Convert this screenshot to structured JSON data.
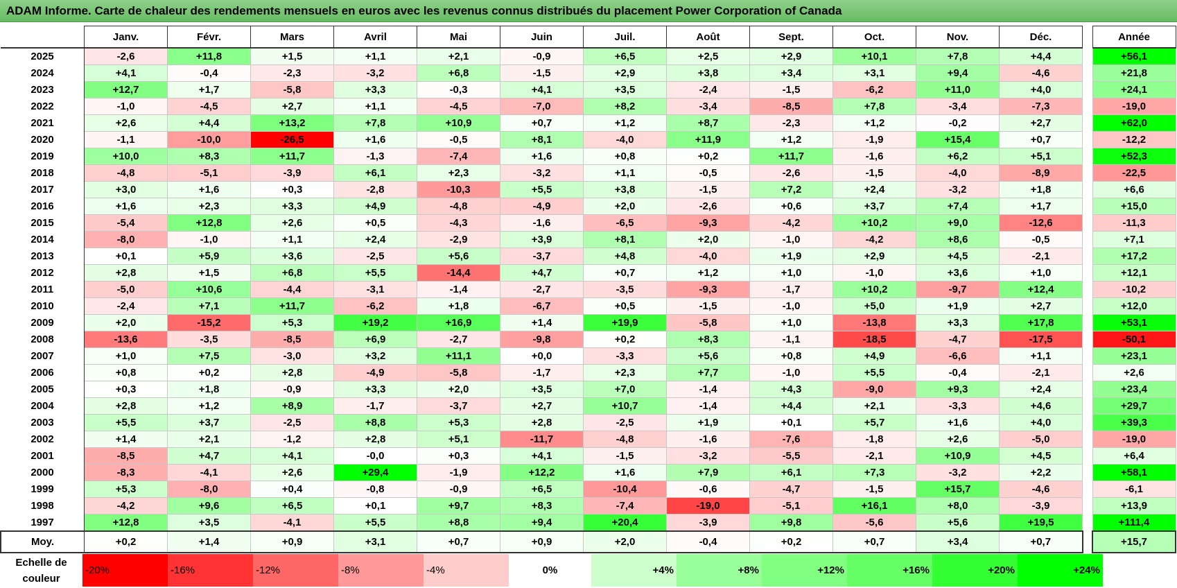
{
  "title": "ADAM Informe. Carte de chaleur des rendements mensuels en euros avec les revenus connus distribués du placement Power Corporation of Canada",
  "chart_data": {
    "type": "heatmap",
    "title": "ADAM Informe. Carte de chaleur des rendements mensuels en euros avec les revenus connus distribués du placement Power Corporation of Canada",
    "months": [
      "Janv.",
      "Févr.",
      "Mars",
      "Avril",
      "Mai",
      "Juin",
      "Juil.",
      "Août",
      "Sept.",
      "Oct.",
      "Nov.",
      "Déc."
    ],
    "annual_header": "Année",
    "rows": [
      {
        "year": "2025",
        "values": [
          "-2,6",
          "+11,8",
          "+1,5",
          "+1,1",
          "+2,1",
          "-0,9",
          "+6,5",
          "+2,5",
          "+2,9",
          "+10,1",
          "+7,8",
          "+4,4"
        ],
        "annual": "+56,1"
      },
      {
        "year": "2024",
        "values": [
          "+4,1",
          "-0,4",
          "-2,3",
          "-3,2",
          "+6,8",
          "-1,5",
          "+2,9",
          "+3,8",
          "+3,4",
          "+3,1",
          "+9,4",
          "-4,6"
        ],
        "annual": "+21,8"
      },
      {
        "year": "2023",
        "values": [
          "+12,7",
          "+1,7",
          "-5,8",
          "+3,3",
          "-0,3",
          "+4,1",
          "+3,5",
          "-2,4",
          "-1,5",
          "-6,2",
          "+11,0",
          "+4,0"
        ],
        "annual": "+24,1"
      },
      {
        "year": "2022",
        "values": [
          "-1,0",
          "-4,5",
          "+2,7",
          "+1,1",
          "-4,5",
          "-7,0",
          "+8,2",
          "-3,4",
          "-8,5",
          "+7,8",
          "-3,4",
          "-7,3"
        ],
        "annual": "-19,0"
      },
      {
        "year": "2021",
        "values": [
          "+2,6",
          "+4,4",
          "+13,2",
          "+7,8",
          "+10,9",
          "+0,7",
          "+1,2",
          "+8,7",
          "-2,3",
          "+1,2",
          "-0,2",
          "+2,7"
        ],
        "annual": "+62,0"
      },
      {
        "year": "2020",
        "values": [
          "-1,1",
          "-10,0",
          "-26,5",
          "+1,6",
          "-0,5",
          "+8,1",
          "-4,0",
          "+11,9",
          "+1,2",
          "-1,9",
          "+15,4",
          "+0,7"
        ],
        "annual": "-12,2"
      },
      {
        "year": "2019",
        "values": [
          "+10,0",
          "+8,3",
          "+11,7",
          "-1,3",
          "-7,4",
          "+1,6",
          "+0,8",
          "+0,2",
          "+11,7",
          "-1,6",
          "+6,2",
          "+5,1"
        ],
        "annual": "+52,3"
      },
      {
        "year": "2018",
        "values": [
          "-4,8",
          "-5,1",
          "-3,9",
          "+6,1",
          "+2,3",
          "-3,2",
          "+1,1",
          "-0,5",
          "-2,6",
          "-1,5",
          "-4,0",
          "-8,9"
        ],
        "annual": "-22,5"
      },
      {
        "year": "2017",
        "values": [
          "+3,0",
          "+1,6",
          "+0,3",
          "-2,8",
          "-10,3",
          "+5,5",
          "+3,8",
          "-1,5",
          "+7,2",
          "+2,4",
          "-3,2",
          "+1,8"
        ],
        "annual": "+6,6"
      },
      {
        "year": "2016",
        "values": [
          "+1,6",
          "+2,3",
          "+3,3",
          "+4,9",
          "-4,8",
          "-4,9",
          "+2,0",
          "-2,6",
          "+0,6",
          "+3,7",
          "+7,4",
          "+1,7"
        ],
        "annual": "+15,0"
      },
      {
        "year": "2015",
        "values": [
          "-5,4",
          "+12,8",
          "+2,6",
          "+0,5",
          "-4,3",
          "-1,6",
          "-6,5",
          "-9,3",
          "-4,2",
          "+10,2",
          "+9,0",
          "-12,6"
        ],
        "annual": "-11,3"
      },
      {
        "year": "2014",
        "values": [
          "-8,0",
          "-1,0",
          "+1,1",
          "+2,4",
          "-2,9",
          "+3,9",
          "+8,1",
          "+2,0",
          "-1,0",
          "-4,2",
          "+8,6",
          "-0,5"
        ],
        "annual": "+7,1"
      },
      {
        "year": "2013",
        "values": [
          "+0,1",
          "+5,9",
          "+3,6",
          "-2,5",
          "+5,6",
          "-3,7",
          "+4,8",
          "-4,0",
          "+1,9",
          "+2,9",
          "+4,5",
          "-2,1"
        ],
        "annual": "+17,2"
      },
      {
        "year": "2012",
        "values": [
          "+2,8",
          "+1,5",
          "+6,8",
          "+5,5",
          "-14,4",
          "+4,7",
          "+0,7",
          "+1,2",
          "+1,0",
          "-1,0",
          "+3,6",
          "+1,0"
        ],
        "annual": "+12,1"
      },
      {
        "year": "2011",
        "values": [
          "-5,0",
          "+10,6",
          "-4,4",
          "-3,1",
          "-1,4",
          "-2,7",
          "-3,5",
          "-9,3",
          "-1,7",
          "+10,2",
          "-9,7",
          "+12,4"
        ],
        "annual": "-10,2"
      },
      {
        "year": "2010",
        "values": [
          "-2,4",
          "+7,1",
          "+11,7",
          "-6,2",
          "+1,8",
          "-6,7",
          "+0,5",
          "-1,5",
          "-1,0",
          "+5,0",
          "+1,9",
          "+2,7"
        ],
        "annual": "+12,0"
      },
      {
        "year": "2009",
        "values": [
          "+2,0",
          "-15,2",
          "+5,3",
          "+19,2",
          "+16,9",
          "+1,4",
          "+19,9",
          "-5,8",
          "+1,0",
          "-13,8",
          "+3,3",
          "+17,8"
        ],
        "annual": "+53,1"
      },
      {
        "year": "2008",
        "values": [
          "-13,6",
          "-3,5",
          "-8,5",
          "+6,9",
          "-2,7",
          "-9,8",
          "+0,2",
          "+8,3",
          "-1,1",
          "-18,5",
          "-4,7",
          "-17,5"
        ],
        "annual": "-50,1"
      },
      {
        "year": "2007",
        "values": [
          "+1,0",
          "+7,5",
          "-3,0",
          "+3,2",
          "+11,1",
          "+0,0",
          "-3,3",
          "+5,6",
          "+0,8",
          "+4,9",
          "-6,6",
          "+1,1"
        ],
        "annual": "+23,1"
      },
      {
        "year": "2006",
        "values": [
          "+0,8",
          "+0,2",
          "+2,8",
          "-4,9",
          "-5,8",
          "-1,7",
          "+2,3",
          "+7,7",
          "-1,0",
          "+5,5",
          "-0,4",
          "-2,1"
        ],
        "annual": "+2,6"
      },
      {
        "year": "2005",
        "values": [
          "+0,3",
          "+1,8",
          "-0,9",
          "+3,3",
          "+2,0",
          "+3,5",
          "+7,0",
          "-1,4",
          "+4,3",
          "-9,0",
          "+9,3",
          "+2,4"
        ],
        "annual": "+23,4"
      },
      {
        "year": "2004",
        "values": [
          "+2,8",
          "+1,2",
          "+8,9",
          "-1,7",
          "-3,7",
          "+2,7",
          "+10,7",
          "-1,4",
          "+4,4",
          "+2,1",
          "-3,3",
          "+4,6"
        ],
        "annual": "+29,7"
      },
      {
        "year": "2003",
        "values": [
          "+5,5",
          "+3,7",
          "-2,5",
          "+8,8",
          "+5,3",
          "+2,8",
          "-2,5",
          "+1,9",
          "+0,1",
          "+5,7",
          "+1,6",
          "+4,0"
        ],
        "annual": "+39,3"
      },
      {
        "year": "2002",
        "values": [
          "+1,4",
          "+2,1",
          "-1,2",
          "+2,8",
          "+5,1",
          "-11,7",
          "-4,8",
          "-1,6",
          "-7,6",
          "-1,8",
          "+2,6",
          "-5,0"
        ],
        "annual": "-19,0"
      },
      {
        "year": "2001",
        "values": [
          "-8,5",
          "+4,7",
          "+4,1",
          "-0,0",
          "+0,3",
          "+4,1",
          "-1,5",
          "-3,2",
          "-5,5",
          "-2,1",
          "+10,9",
          "+4,5"
        ],
        "annual": "+6,4"
      },
      {
        "year": "2000",
        "values": [
          "-8,3",
          "-4,1",
          "+2,6",
          "+29,4",
          "-1,9",
          "+12,2",
          "+1,6",
          "+7,9",
          "+6,1",
          "+7,3",
          "-3,2",
          "+2,2"
        ],
        "annual": "+58,1"
      },
      {
        "year": "1999",
        "values": [
          "+5,3",
          "-8,0",
          "+0,4",
          "-0,8",
          "-0,9",
          "+6,5",
          "-10,4",
          "-0,6",
          "-4,7",
          "-1,5",
          "+15,7",
          "-4,6"
        ],
        "annual": "-6,1"
      },
      {
        "year": "1998",
        "values": [
          "-4,2",
          "+9,6",
          "+6,5",
          "+0,1",
          "+9,7",
          "+8,3",
          "-7,4",
          "-19,0",
          "-5,1",
          "+16,1",
          "+8,0",
          "-3,9"
        ],
        "annual": "+13,9"
      },
      {
        "year": "1997",
        "values": [
          "+12,8",
          "+3,5",
          "-4,1",
          "+5,5",
          "+8,8",
          "+9,4",
          "+20,4",
          "-3,9",
          "+9,8",
          "-5,6",
          "+5,6",
          "+19,5"
        ],
        "annual": "+111,4"
      }
    ],
    "average": {
      "label": "Moy.",
      "values": [
        "+0,2",
        "+1,4",
        "+0,9",
        "+3,1",
        "+0,7",
        "+0,9",
        "+2,0",
        "-0,4",
        "+0,2",
        "+0,7",
        "+3,4",
        "+0,7"
      ],
      "annual": "+15,7"
    },
    "color_scale": {
      "label": "Echelle de couleur",
      "stops": [
        {
          "label": "-20%",
          "color": "#ff0000",
          "kind": "neg"
        },
        {
          "label": "-16%",
          "color": "#ff3333",
          "kind": "neg"
        },
        {
          "label": "-12%",
          "color": "#ff6666",
          "kind": "neg"
        },
        {
          "label": "-8%",
          "color": "#ff9999",
          "kind": "neg"
        },
        {
          "label": "-4%",
          "color": "#ffcccc",
          "kind": "neg"
        },
        {
          "label": "0%",
          "color": "#ffffff",
          "kind": "zero"
        },
        {
          "label": "+4%",
          "color": "#ccffcc",
          "kind": "pos"
        },
        {
          "label": "+8%",
          "color": "#99ff99",
          "kind": "pos"
        },
        {
          "label": "+12%",
          "color": "#80ff80",
          "kind": "pos"
        },
        {
          "label": "+16%",
          "color": "#66ff66",
          "kind": "pos"
        },
        {
          "label": "+20%",
          "color": "#33ff33",
          "kind": "pos"
        },
        {
          "label": "+24%",
          "color": "#00ff00",
          "kind": "pos"
        }
      ]
    }
  }
}
